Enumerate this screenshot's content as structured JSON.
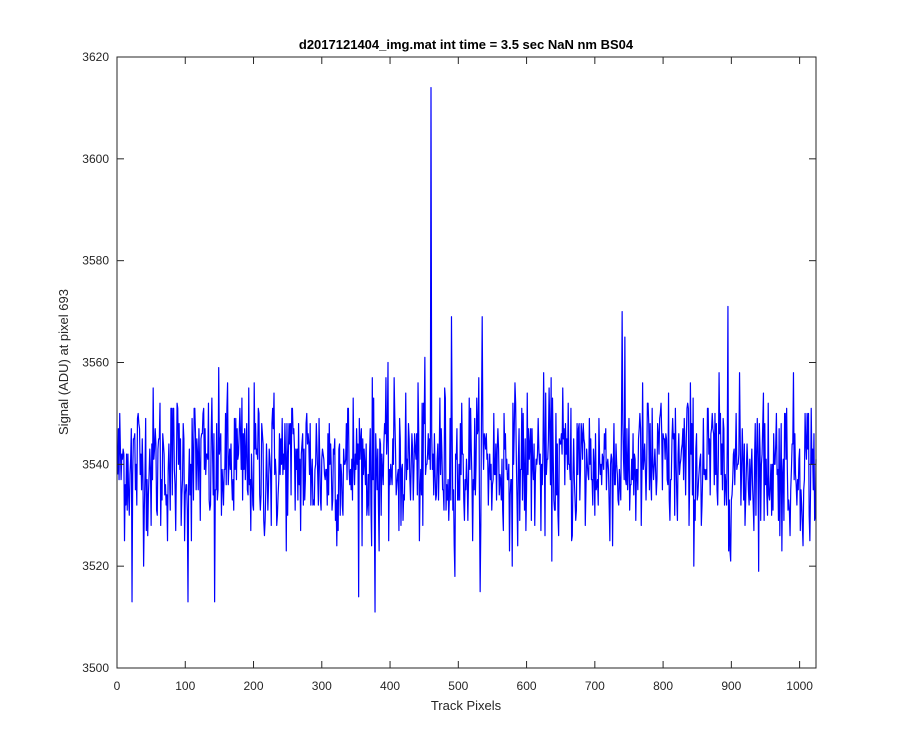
{
  "chart_data": {
    "type": "line",
    "title": "d2017121404_img.mat int time = 3.5 sec  NaN nm BS04",
    "xlabel": "Track Pixels",
    "ylabel": "Signal (ADU) at pixel 693",
    "xlim": [
      0,
      1024
    ],
    "ylim": [
      3500,
      3620
    ],
    "xticks": [
      0,
      100,
      200,
      300,
      400,
      500,
      600,
      700,
      800,
      900,
      1000
    ],
    "yticks": [
      3500,
      3520,
      3540,
      3560,
      3580,
      3600,
      3620
    ],
    "grid": false,
    "line_color": "#0000ff",
    "series": [
      {
        "x_start": 1,
        "x_step": 1,
        "n_points": 1024,
        "baseline": 3540,
        "noise_min": 3511,
        "noise_max": 3571,
        "spikes": [
          {
            "x": 460,
            "y": 3614
          },
          {
            "x": 378,
            "y": 3511
          },
          {
            "x": 895,
            "y": 3571
          },
          {
            "x": 740,
            "y": 3570
          },
          {
            "x": 535,
            "y": 3569
          },
          {
            "x": 490,
            "y": 3569
          },
          {
            "x": 22,
            "y": 3513
          },
          {
            "x": 104,
            "y": 3513
          },
          {
            "x": 143,
            "y": 3513
          }
        ]
      }
    ]
  }
}
